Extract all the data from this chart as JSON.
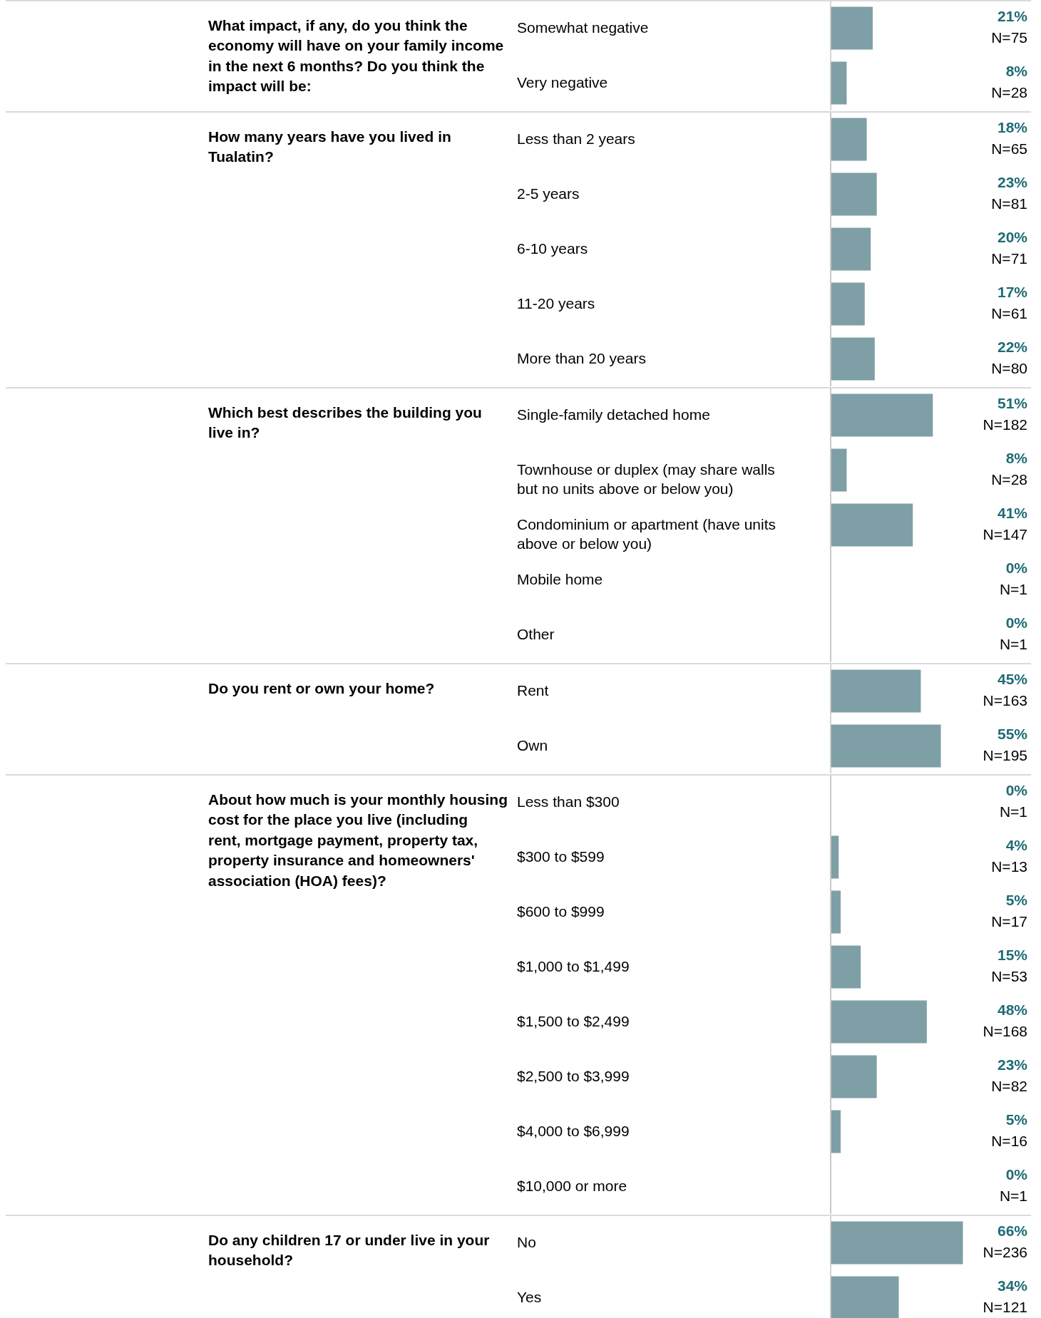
{
  "chart_data": [
    {
      "type": "bar",
      "orientation": "horizontal",
      "color": "#7f9fa6",
      "title": "What impact, if any, do you think the economy will have on your family income in the next 6 months? Do you think the impact will be:",
      "categories": [
        "Somewhat negative",
        "Very negative"
      ],
      "values": [
        21,
        8
      ],
      "value_labels": [
        "21%",
        "8%"
      ],
      "annotations": [
        "N=75",
        "N=28"
      ]
    },
    {
      "type": "bar",
      "orientation": "horizontal",
      "color": "#7f9fa6",
      "title": "How many years have you lived in Tualatin?",
      "categories": [
        "Less than 2 years",
        "2-5 years",
        "6-10 years",
        "11-20 years",
        "More than 20 years"
      ],
      "values": [
        18,
        23,
        20,
        17,
        22
      ],
      "value_labels": [
        "18%",
        "23%",
        "20%",
        "17%",
        "22%"
      ],
      "annotations": [
        "N=65",
        "N=81",
        "N=71",
        "N=61",
        "N=80"
      ]
    },
    {
      "type": "bar",
      "orientation": "horizontal",
      "color": "#7f9fa6",
      "title": "Which best describes the building you live in?",
      "categories": [
        "Single-family detached home",
        "Townhouse or duplex (may share walls but no units above or below you)",
        "Condominium or apartment (have units above or below you)",
        "Mobile home",
        "Other"
      ],
      "values": [
        51,
        8,
        41,
        0,
        0
      ],
      "value_labels": [
        "51%",
        "8%",
        "41%",
        "0%",
        "0%"
      ],
      "annotations": [
        "N=182",
        "N=28",
        "N=147",
        "N=1",
        "N=1"
      ]
    },
    {
      "type": "bar",
      "orientation": "horizontal",
      "color": "#7f9fa6",
      "title": "Do you rent or own your home?",
      "categories": [
        "Rent",
        "Own"
      ],
      "values": [
        45,
        55
      ],
      "value_labels": [
        "45%",
        "55%"
      ],
      "annotations": [
        "N=163",
        "N=195"
      ]
    },
    {
      "type": "bar",
      "orientation": "horizontal",
      "color": "#7f9fa6",
      "title": "About how much is your monthly housing cost for the place you live (including rent, mortgage payment, property tax, property insurance and homeowners' association (HOA) fees)?",
      "categories": [
        "Less than $300",
        "$300 to $599",
        "$600 to $999",
        "$1,000 to $1,499",
        "$1,500 to $2,499",
        "$2,500 to $3,999",
        "$4,000 to $6,999",
        "$10,000 or more"
      ],
      "values": [
        0,
        4,
        5,
        15,
        48,
        23,
        5,
        0
      ],
      "value_labels": [
        "0%",
        "4%",
        "5%",
        "15%",
        "48%",
        "23%",
        "5%",
        "0%"
      ],
      "annotations": [
        "N=1",
        "N=13",
        "N=17",
        "N=53",
        "N=168",
        "N=82",
        "N=16",
        "N=1"
      ]
    },
    {
      "type": "bar",
      "orientation": "horizontal",
      "color": "#7f9fa6",
      "title": "Do any children 17 or under live in your household?",
      "categories": [
        "No",
        "Yes"
      ],
      "values": [
        66,
        34
      ],
      "value_labels": [
        "66%",
        "34%"
      ],
      "annotations": [
        "N=236",
        "N=121"
      ]
    }
  ]
}
